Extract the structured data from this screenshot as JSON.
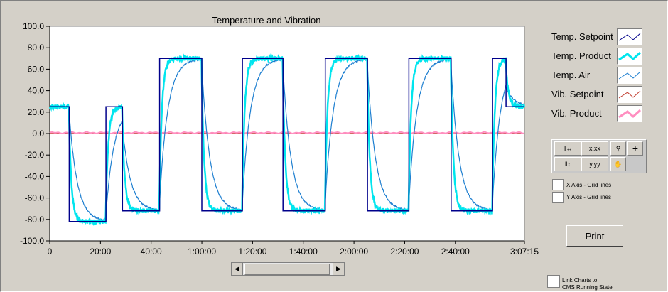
{
  "chart_data": {
    "type": "line",
    "title": "Temperature and Vibration",
    "xlabel": "",
    "ylabel": "",
    "ylim": [
      -100,
      100
    ],
    "xlim_seconds": [
      0,
      11235
    ],
    "y_ticks": [
      100,
      80,
      60,
      40,
      20,
      0,
      -20,
      -40,
      -60,
      -80,
      -100
    ],
    "y_tick_labels": [
      "100.0",
      "80.0",
      "60.0",
      "40.0",
      "20.0",
      "0.0",
      "-20.0",
      "-40.0",
      "-60.0",
      "-80.0",
      "-100.0"
    ],
    "x_ticks_seconds": [
      0,
      1200,
      2400,
      3600,
      4800,
      6000,
      7200,
      8400,
      9600,
      11235
    ],
    "x_tick_labels": [
      "0",
      "20:00",
      "40:00",
      "1:00:00",
      "1:20:00",
      "1:40:00",
      "2:00:00",
      "2:20:00",
      "2:40:00",
      "3:07:15"
    ],
    "setpoint_steps": [
      {
        "t": 0,
        "v": 25
      },
      {
        "t": 460,
        "v": -82
      },
      {
        "t": 1330,
        "v": 25
      },
      {
        "t": 1720,
        "v": -72
      },
      {
        "t": 2600,
        "v": 70
      },
      {
        "t": 3600,
        "v": -72
      },
      {
        "t": 4560,
        "v": 70
      },
      {
        "t": 5520,
        "v": -72
      },
      {
        "t": 6520,
        "v": 70
      },
      {
        "t": 7520,
        "v": -72
      },
      {
        "t": 8500,
        "v": 70
      },
      {
        "t": 9500,
        "v": -72
      },
      {
        "t": 10480,
        "v": 70
      },
      {
        "t": 10800,
        "v": 25
      }
    ],
    "vibration_setpoint": 0,
    "vibration_product_level": 1.5,
    "series": [
      {
        "name": "Temp. Setpoint",
        "color": "#00008b"
      },
      {
        "name": "Temp. Product",
        "color": "#00e5ee"
      },
      {
        "name": "Temp. Air",
        "color": "#1e7fd0"
      },
      {
        "name": "Vib. Setpoint",
        "color": "#c0392b"
      },
      {
        "name": "Vib. Product",
        "color": "#ff8fc0"
      }
    ],
    "grid": false,
    "legend_position": "right"
  },
  "palette": {
    "b1": "x.xx",
    "b2": "y.yy"
  },
  "checkboxes": {
    "x_grid": "X Axis - Grid lines",
    "y_grid": "Y Axis - Grid lines",
    "link": "Link Charts to",
    "link2": "CMS Running State"
  },
  "print_label": "Print"
}
